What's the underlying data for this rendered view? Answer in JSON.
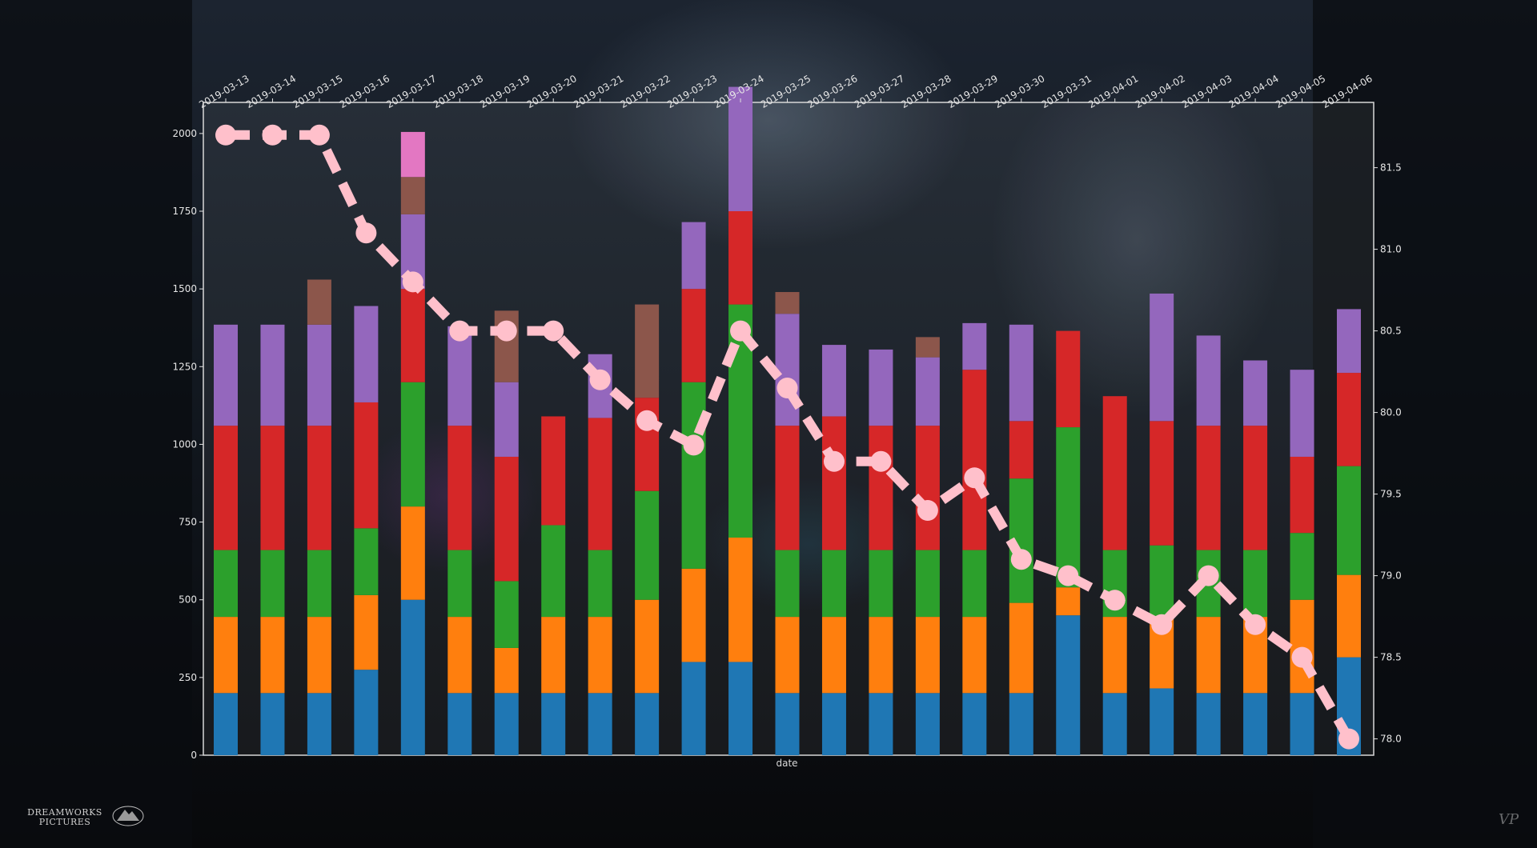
{
  "chart_data": {
    "type": "bar",
    "stacked": true,
    "title": "",
    "xlabel": "date",
    "ylabel": "",
    "y2label": "",
    "ylim": [
      0,
      2100
    ],
    "y2lim": [
      77.9,
      81.9
    ],
    "yticks": [
      0,
      250,
      500,
      750,
      1000,
      1250,
      1500,
      1750,
      2000
    ],
    "y2ticks": [
      78.0,
      78.5,
      79.0,
      79.5,
      80.0,
      80.5,
      81.0,
      81.5
    ],
    "grid": false,
    "legend": "none",
    "categories": [
      "2019-03-13",
      "2019-03-14",
      "2019-03-15",
      "2019-03-16",
      "2019-03-17",
      "2019-03-18",
      "2019-03-19",
      "2019-03-20",
      "2019-03-21",
      "2019-03-22",
      "2019-03-23",
      "2019-03-24",
      "2019-03-25",
      "2019-03-26",
      "2019-03-27",
      "2019-03-28",
      "2019-03-29",
      "2019-03-30",
      "2019-03-31",
      "2019-04-01",
      "2019-04-02",
      "2019-04-03",
      "2019-04-04",
      "2019-04-05",
      "2019-04-06"
    ],
    "series": [
      {
        "color": "#1f77b4",
        "values": [
          200,
          200,
          200,
          275,
          500,
          200,
          200,
          200,
          200,
          200,
          300,
          300,
          200,
          200,
          200,
          200,
          200,
          200,
          450,
          200,
          215,
          200,
          200,
          200,
          315
        ]
      },
      {
        "color": "#ff7f0e",
        "values": [
          245,
          245,
          245,
          240,
          300,
          245,
          145,
          245,
          245,
          300,
          300,
          400,
          245,
          245,
          245,
          245,
          245,
          290,
          90,
          245,
          230,
          245,
          245,
          300,
          265
        ]
      },
      {
        "color": "#2ca02c",
        "values": [
          215,
          215,
          215,
          215,
          400,
          215,
          215,
          295,
          215,
          350,
          600,
          750,
          215,
          215,
          215,
          215,
          215,
          400,
          515,
          215,
          230,
          215,
          215,
          215,
          350
        ]
      },
      {
        "color": "#d62728",
        "values": [
          400,
          400,
          400,
          405,
          300,
          400,
          400,
          350,
          425,
          300,
          300,
          300,
          400,
          430,
          400,
          400,
          580,
          185,
          310,
          495,
          400,
          400,
          400,
          245,
          300
        ]
      },
      {
        "color": "#9467bd",
        "values": [
          325,
          325,
          325,
          310,
          240,
          320,
          240,
          0,
          205,
          0,
          215,
          400,
          360,
          230,
          245,
          220,
          150,
          310,
          0,
          0,
          410,
          290,
          210,
          280,
          205
        ]
      },
      {
        "color": "#8c564b",
        "values": [
          0,
          0,
          145,
          0,
          120,
          0,
          230,
          0,
          0,
          300,
          0,
          0,
          70,
          0,
          0,
          65,
          0,
          0,
          0,
          0,
          0,
          0,
          0,
          0,
          0
        ]
      },
      {
        "color": "#e377c2",
        "values": [
          0,
          0,
          0,
          0,
          145,
          0,
          0,
          0,
          0,
          0,
          0,
          0,
          0,
          0,
          0,
          0,
          0,
          0,
          0,
          0,
          0,
          0,
          0,
          0,
          0
        ]
      }
    ],
    "line": {
      "axis": "right",
      "color": "#ffc0cb",
      "values": [
        81.7,
        81.7,
        81.7,
        81.1,
        80.8,
        80.5,
        80.5,
        80.5,
        80.2,
        79.95,
        79.8,
        80.5,
        80.15,
        79.7,
        79.7,
        79.4,
        79.6,
        79.1,
        79.0,
        78.85,
        78.7,
        79.0,
        78.7,
        78.5,
        78.0
      ]
    }
  },
  "branding": {
    "studio_logo": "DREAMWORKS PICTURES",
    "studio_logo_icon": "paramount-mountain-icon",
    "signature": "VP"
  }
}
